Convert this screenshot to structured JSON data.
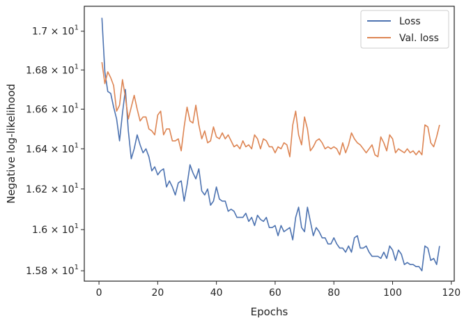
{
  "chart_data": {
    "type": "line",
    "xlabel": "Epochs",
    "ylabel": "Negative log-likelihood",
    "xlim": [
      -5,
      121
    ],
    "ylim": [
      15.75,
      17.13
    ],
    "yscale": "log",
    "grid": false,
    "legend_position": "top-right",
    "x_ticks": [
      {
        "value": 0,
        "label": "0"
      },
      {
        "value": 20,
        "label": "20"
      },
      {
        "value": 40,
        "label": "40"
      },
      {
        "value": 60,
        "label": "60"
      },
      {
        "value": 80,
        "label": "80"
      },
      {
        "value": 100,
        "label": "100"
      },
      {
        "value": 120,
        "label": "120"
      }
    ],
    "y_ticks": [
      {
        "value": 15.8,
        "mantissa": "1.58",
        "times": "×",
        "base": "10",
        "exp": "1"
      },
      {
        "value": 16.0,
        "mantissa": "1.6",
        "times": "×",
        "base": "10",
        "exp": "1"
      },
      {
        "value": 16.2,
        "mantissa": "1.62",
        "times": "×",
        "base": "10",
        "exp": "1"
      },
      {
        "value": 16.4,
        "mantissa": "1.64",
        "times": "×",
        "base": "10",
        "exp": "1"
      },
      {
        "value": 16.6,
        "mantissa": "1.66",
        "times": "×",
        "base": "10",
        "exp": "1"
      },
      {
        "value": 16.8,
        "mantissa": "1.68",
        "times": "×",
        "base": "10",
        "exp": "1"
      },
      {
        "value": 17.0,
        "mantissa": "1.7",
        "times": "×",
        "base": "10",
        "exp": "1"
      }
    ],
    "series": [
      {
        "name": "Loss",
        "color": "#4c72b0",
        "x_start": 1,
        "values": [
          17.07,
          16.79,
          16.69,
          16.68,
          16.61,
          16.55,
          16.44,
          16.58,
          16.7,
          16.49,
          16.35,
          16.4,
          16.47,
          16.42,
          16.38,
          16.4,
          16.36,
          16.29,
          16.31,
          16.27,
          16.29,
          16.3,
          16.21,
          16.24,
          16.21,
          16.17,
          16.23,
          16.24,
          16.14,
          16.22,
          16.32,
          16.28,
          16.25,
          16.3,
          16.19,
          16.17,
          16.2,
          16.12,
          16.14,
          16.21,
          16.15,
          16.14,
          16.14,
          16.09,
          16.1,
          16.09,
          16.06,
          16.06,
          16.06,
          16.08,
          16.04,
          16.06,
          16.02,
          16.07,
          16.05,
          16.04,
          16.06,
          16.01,
          16.01,
          16.02,
          15.97,
          16.02,
          15.99,
          16.0,
          16.01,
          15.95,
          16.06,
          16.11,
          16.01,
          15.99,
          16.11,
          16.04,
          15.97,
          16.01,
          15.99,
          15.96,
          15.96,
          15.93,
          15.93,
          15.96,
          15.93,
          15.91,
          15.91,
          15.89,
          15.92,
          15.89,
          15.96,
          15.97,
          15.91,
          15.91,
          15.92,
          15.89,
          15.87,
          15.87,
          15.87,
          15.86,
          15.89,
          15.86,
          15.92,
          15.9,
          15.85,
          15.9,
          15.88,
          15.83,
          15.84,
          15.83,
          15.83,
          15.82,
          15.82,
          15.8,
          15.92,
          15.91,
          15.85,
          15.86,
          15.83,
          15.92
        ]
      },
      {
        "name": "Val. loss",
        "color": "#dd8452",
        "x_start": 1,
        "values": [
          16.84,
          16.73,
          16.79,
          16.76,
          16.72,
          16.59,
          16.62,
          16.75,
          16.66,
          16.55,
          16.61,
          16.67,
          16.6,
          16.54,
          16.56,
          16.56,
          16.5,
          16.49,
          16.47,
          16.57,
          16.59,
          16.47,
          16.5,
          16.5,
          16.44,
          16.44,
          16.45,
          16.39,
          16.51,
          16.61,
          16.54,
          16.53,
          16.62,
          16.52,
          16.45,
          16.49,
          16.43,
          16.44,
          16.51,
          16.46,
          16.45,
          16.48,
          16.45,
          16.47,
          16.44,
          16.41,
          16.42,
          16.4,
          16.44,
          16.41,
          16.42,
          16.4,
          16.47,
          16.45,
          16.4,
          16.45,
          16.44,
          16.41,
          16.41,
          16.38,
          16.41,
          16.4,
          16.43,
          16.42,
          16.36,
          16.52,
          16.59,
          16.47,
          16.42,
          16.56,
          16.5,
          16.39,
          16.41,
          16.44,
          16.45,
          16.43,
          16.4,
          16.41,
          16.4,
          16.41,
          16.4,
          16.37,
          16.43,
          16.38,
          16.42,
          16.48,
          16.45,
          16.43,
          16.42,
          16.4,
          16.38,
          16.4,
          16.42,
          16.37,
          16.36,
          16.46,
          16.43,
          16.39,
          16.47,
          16.45,
          16.38,
          16.4,
          16.39,
          16.38,
          16.4,
          16.38,
          16.39,
          16.37,
          16.39,
          16.37,
          16.52,
          16.51,
          16.43,
          16.41,
          16.46,
          16.52
        ]
      }
    ]
  }
}
